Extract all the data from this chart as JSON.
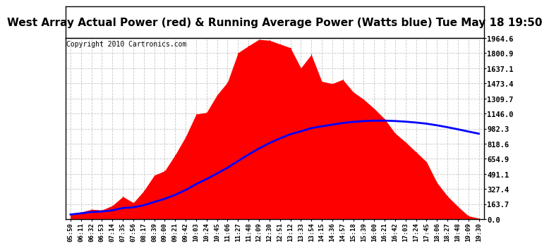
{
  "title": "West Array Actual Power (red) & Running Average Power (Watts blue) Tue May 18 19:50",
  "copyright": "Copyright 2010 Cartronics.com",
  "yticks": [
    0.0,
    163.7,
    327.4,
    491.1,
    654.9,
    818.6,
    982.3,
    1146.0,
    1309.7,
    1473.4,
    1637.1,
    1800.9,
    1964.6
  ],
  "ymax": 1964.6,
  "xtick_labels": [
    "05:50",
    "06:11",
    "06:32",
    "06:53",
    "07:14",
    "07:35",
    "07:56",
    "08:17",
    "08:39",
    "09:00",
    "09:21",
    "09:42",
    "10:03",
    "10:24",
    "10:45",
    "11:06",
    "11:27",
    "11:48",
    "12:09",
    "12:30",
    "12:51",
    "13:12",
    "13:33",
    "13:54",
    "14:15",
    "14:36",
    "14:57",
    "15:18",
    "15:39",
    "16:00",
    "16:21",
    "16:42",
    "17:03",
    "17:24",
    "17:45",
    "18:06",
    "18:27",
    "18:48",
    "19:09",
    "19:30"
  ],
  "red_color": "#FF0000",
  "blue_color": "#0000FF",
  "bg_color": "#FFFFFF",
  "grid_color": "#C0C0C0",
  "title_fontsize": 11,
  "copyright_fontsize": 7
}
